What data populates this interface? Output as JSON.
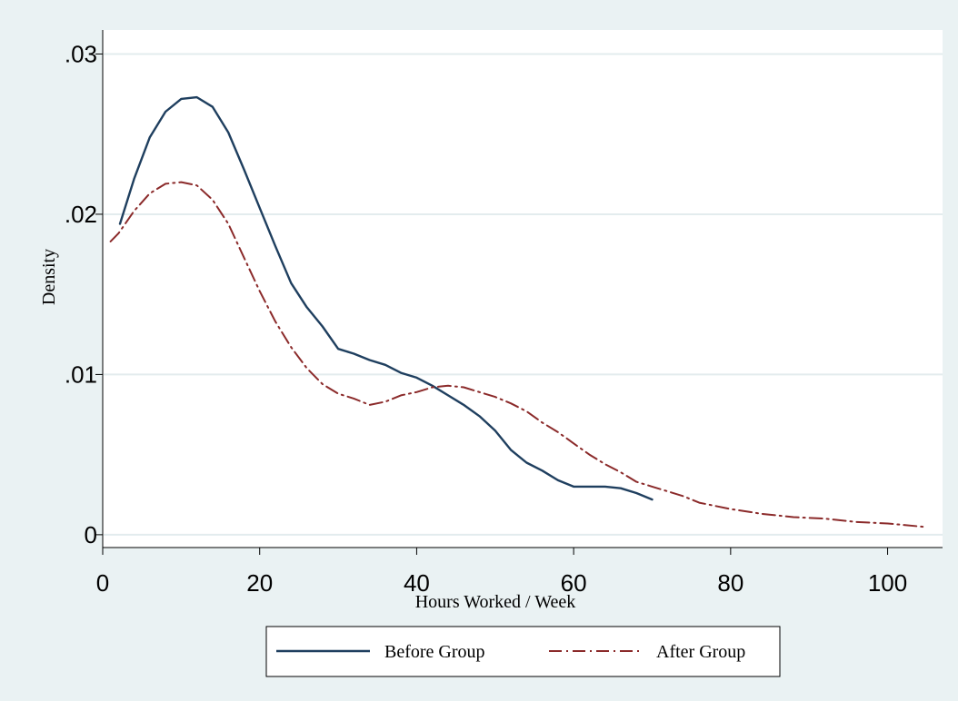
{
  "chart_data": {
    "type": "line",
    "title": "",
    "xlabel": "Hours Worked / Week",
    "ylabel": "Density",
    "xlim": [
      0,
      107
    ],
    "ylim": [
      -0.0008,
      0.0315
    ],
    "x_ticks": [
      0,
      20,
      40,
      60,
      80,
      100
    ],
    "x_tick_labels": [
      "0",
      "20",
      "40",
      "60",
      "80",
      "100"
    ],
    "y_ticks": [
      0,
      0.01,
      0.02,
      0.03
    ],
    "y_tick_labels": [
      "0",
      ".01",
      ".02",
      ".03"
    ],
    "grid": true,
    "legend_position": "bottom",
    "colors": {
      "background": "#eaf2f3",
      "plot_bg": "#ffffff",
      "grid": "#e3ecee",
      "before": "#1f3f5f",
      "after": "#8b2a2a"
    },
    "series": [
      {
        "name": "Before Group",
        "style": "solid",
        "color": "#1f3f5f",
        "points": [
          [
            2.2,
            0.0194
          ],
          [
            4,
            0.0222
          ],
          [
            6,
            0.0248
          ],
          [
            8,
            0.0264
          ],
          [
            10,
            0.0272
          ],
          [
            12,
            0.0273
          ],
          [
            14,
            0.0267
          ],
          [
            16,
            0.0251
          ],
          [
            18,
            0.0228
          ],
          [
            20,
            0.0204
          ],
          [
            22,
            0.018
          ],
          [
            24,
            0.0157
          ],
          [
            26,
            0.0142
          ],
          [
            28,
            0.013
          ],
          [
            30,
            0.0116
          ],
          [
            32,
            0.0113
          ],
          [
            34,
            0.0109
          ],
          [
            36,
            0.0106
          ],
          [
            38,
            0.0101
          ],
          [
            40,
            0.0098
          ],
          [
            42,
            0.0093
          ],
          [
            44,
            0.0087
          ],
          [
            46,
            0.0081
          ],
          [
            48,
            0.0074
          ],
          [
            50,
            0.0065
          ],
          [
            52,
            0.0053
          ],
          [
            54,
            0.0045
          ],
          [
            56,
            0.004
          ],
          [
            58,
            0.0034
          ],
          [
            60,
            0.003
          ],
          [
            62,
            0.003
          ],
          [
            64,
            0.003
          ],
          [
            66,
            0.0029
          ],
          [
            68,
            0.0026
          ],
          [
            70,
            0.0022
          ]
        ]
      },
      {
        "name": "After Group",
        "style": "dash-dot",
        "color": "#8b2a2a",
        "points": [
          [
            1,
            0.0183
          ],
          [
            2,
            0.0188
          ],
          [
            4,
            0.0202
          ],
          [
            6,
            0.0213
          ],
          [
            8,
            0.0219
          ],
          [
            10,
            0.022
          ],
          [
            12,
            0.0218
          ],
          [
            14,
            0.0209
          ],
          [
            16,
            0.0194
          ],
          [
            18,
            0.0173
          ],
          [
            20,
            0.0152
          ],
          [
            22,
            0.0133
          ],
          [
            24,
            0.0117
          ],
          [
            26,
            0.0104
          ],
          [
            28,
            0.0094
          ],
          [
            30,
            0.0088
          ],
          [
            32,
            0.0085
          ],
          [
            34,
            0.0081
          ],
          [
            36,
            0.0083
          ],
          [
            38,
            0.0087
          ],
          [
            40,
            0.0089
          ],
          [
            42,
            0.0092
          ],
          [
            44,
            0.0093
          ],
          [
            46,
            0.0092
          ],
          [
            48,
            0.0089
          ],
          [
            50,
            0.0086
          ],
          [
            52,
            0.0082
          ],
          [
            54,
            0.0077
          ],
          [
            56,
            0.007
          ],
          [
            58,
            0.0064
          ],
          [
            60,
            0.0057
          ],
          [
            62,
            0.005
          ],
          [
            64,
            0.0044
          ],
          [
            66,
            0.0039
          ],
          [
            68,
            0.0033
          ],
          [
            70,
            0.003
          ],
          [
            72,
            0.0027
          ],
          [
            74,
            0.0024
          ],
          [
            76,
            0.002
          ],
          [
            78,
            0.0018
          ],
          [
            80,
            0.0016
          ],
          [
            84,
            0.0013
          ],
          [
            88,
            0.0011
          ],
          [
            92,
            0.001
          ],
          [
            96,
            0.0008
          ],
          [
            100,
            0.0007
          ],
          [
            104.5,
            0.0005
          ]
        ]
      }
    ]
  }
}
